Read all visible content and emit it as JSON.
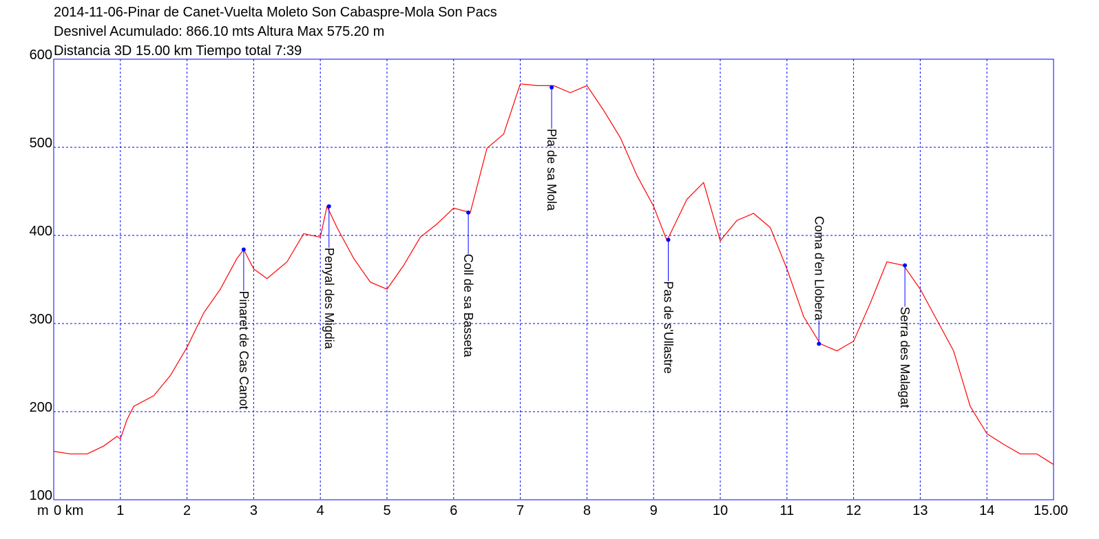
{
  "chart_data": {
    "type": "line",
    "title_lines": [
      "2014-11-06-Pinar de Canet-Vuelta Moleto Son Cabaspre-Mola Son Pacs",
      "Desnivel Acumulado: 866.10 mts  Altura Max 575.20 m",
      "Distancia 3D 15.00 km  Tiempo total 7:39"
    ],
    "y_label": "m",
    "x": [
      0,
      0.25,
      0.5,
      0.75,
      0.95,
      1.0,
      1.1,
      1.2,
      1.5,
      1.75,
      2.0,
      2.25,
      2.5,
      2.75,
      2.85,
      3.0,
      3.2,
      3.5,
      3.75,
      4.0,
      4.1,
      4.25,
      4.5,
      4.75,
      5.0,
      5.25,
      5.5,
      5.75,
      6.0,
      6.25,
      6.5,
      6.75,
      7.0,
      7.25,
      7.5,
      7.75,
      8.0,
      8.25,
      8.5,
      8.75,
      9.0,
      9.2,
      9.5,
      9.75,
      10.0,
      10.25,
      10.5,
      10.75,
      11.0,
      11.25,
      11.5,
      11.75,
      12.0,
      12.25,
      12.5,
      12.75,
      13.0,
      13.25,
      13.5,
      13.75,
      14.0,
      14.25,
      14.5,
      14.75,
      15.0
    ],
    "series": [
      {
        "color": "#ff0000",
        "values": [
          155,
          152,
          152,
          161,
          172,
          169,
          191,
          206,
          218,
          241,
          273,
          312,
          339,
          374,
          384,
          362,
          351,
          370,
          402,
          398,
          433,
          409,
          374,
          347,
          339,
          366,
          398,
          413,
          431,
          426,
          499,
          515,
          572,
          570,
          570,
          562,
          570,
          542,
          511,
          468,
          433,
          394,
          441,
          460,
          394,
          417,
          425,
          409,
          362,
          308,
          277,
          269,
          280,
          323,
          370,
          366,
          339,
          304,
          269,
          206,
          175,
          163,
          152,
          152,
          140
        ]
      }
    ],
    "annotations": [
      {
        "label": "Pinaret de Cas Canot",
        "x": 2.85,
        "y": 384
      },
      {
        "label": "Penyal des Migdia",
        "x": 4.13,
        "y": 433
      },
      {
        "label": "Coll de sa Basseta",
        "x": 6.22,
        "y": 426
      },
      {
        "label": "Pla de sa Mola",
        "x": 7.47,
        "y": 568
      },
      {
        "label": "Pas de s'Ullastre",
        "x": 9.22,
        "y": 395
      },
      {
        "label": "Coma d'en Llobera",
        "x": 11.48,
        "y": 277
      },
      {
        "label": "Serra des Malagat",
        "x": 12.77,
        "y": 366
      }
    ],
    "annotation_color": "#0000ff",
    "xlim": [
      0,
      15
    ],
    "ylim": [
      100,
      600
    ],
    "xticks": [
      {
        "value": 0,
        "label": "0 km"
      },
      1,
      2,
      3,
      4,
      5,
      6,
      7,
      8,
      9,
      10,
      11,
      12,
      13,
      14,
      {
        "value": 15,
        "label": "15.00"
      }
    ],
    "yticks": [
      100,
      200,
      300,
      400,
      500,
      600
    ],
    "grid": true
  }
}
